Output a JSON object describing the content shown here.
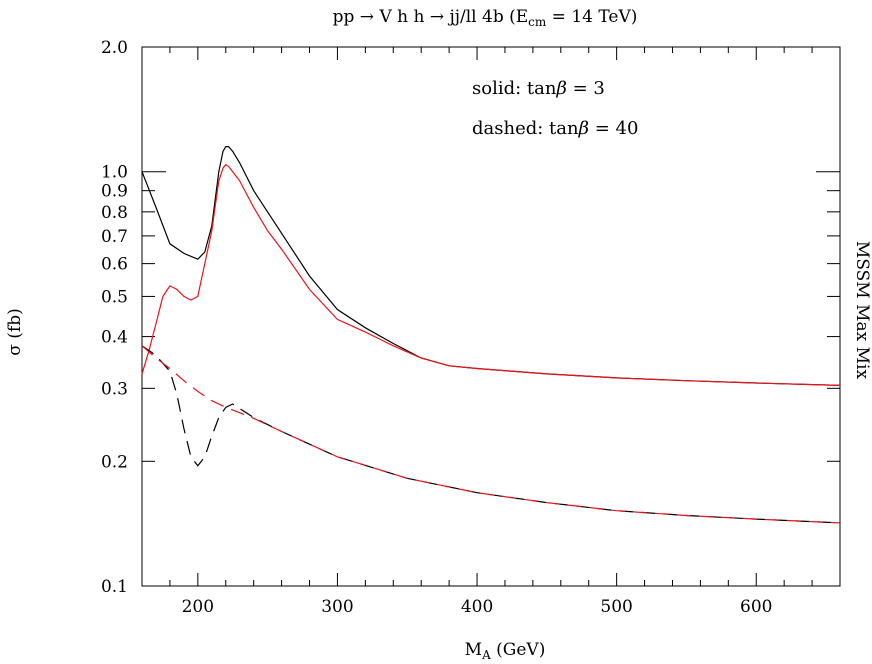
{
  "chart_data": {
    "type": "line",
    "title": "pp → V h h → jj/ll 4b (E",
    "title_sub": "cm",
    "title_tail": " = 14 TeV)",
    "xlabel": "M",
    "xlabel_sub": "A",
    "xlabel_tail": " (GeV)",
    "ylabel": "σ (fb)",
    "side_label": "MSSM Max Mix",
    "annotations": {
      "solid_prefix": "solid: tan",
      "solid_symbol": "β",
      "solid_value": " = 3",
      "dashed_prefix": "dashed: tan",
      "dashed_symbol": "β",
      "dashed_value": " = 40"
    },
    "xlim": [
      160,
      660
    ],
    "ylim": [
      0.1,
      2.0
    ],
    "yscale": "log",
    "x_ticks": [
      200,
      300,
      400,
      500,
      600
    ],
    "x_tick_labels": [
      "200",
      "300",
      "400",
      "500",
      "600"
    ],
    "y_ticks": [
      0.1,
      0.2,
      0.3,
      0.4,
      0.5,
      0.6,
      0.7,
      0.8,
      0.9,
      1.0,
      2.0
    ],
    "y_tick_labels": [
      "0.1",
      "0.2",
      "0.3",
      "0.4",
      "0.5",
      "0.6",
      "0.7",
      "0.8",
      "0.9",
      "1.0",
      "2.0"
    ],
    "colors": {
      "black": "#000000",
      "red": "#e8141c"
    },
    "series": [
      {
        "style": "solid",
        "color": "black",
        "x": [
          160,
          170,
          180,
          190,
          200,
          205,
          210,
          215,
          218,
          220,
          222,
          225,
          230,
          240,
          250,
          260,
          280,
          300,
          320,
          340,
          360,
          380,
          400,
          450,
          500,
          550,
          600,
          660
        ],
        "y": [
          1.0,
          0.82,
          0.67,
          0.635,
          0.615,
          0.64,
          0.74,
          1.0,
          1.12,
          1.15,
          1.15,
          1.12,
          1.05,
          0.9,
          0.8,
          0.71,
          0.56,
          0.465,
          0.42,
          0.385,
          0.355,
          0.34,
          0.335,
          0.325,
          0.318,
          0.313,
          0.309,
          0.305
        ]
      },
      {
        "style": "solid",
        "color": "red",
        "x": [
          160,
          165,
          170,
          175,
          180,
          185,
          190,
          195,
          200,
          205,
          210,
          215,
          218,
          220,
          222,
          225,
          230,
          240,
          250,
          260,
          280,
          300,
          320,
          340,
          360,
          380,
          400,
          450,
          500,
          550,
          600,
          660
        ],
        "y": [
          0.325,
          0.37,
          0.43,
          0.5,
          0.53,
          0.52,
          0.5,
          0.49,
          0.5,
          0.6,
          0.72,
          0.95,
          1.02,
          1.04,
          1.03,
          1.0,
          0.95,
          0.82,
          0.72,
          0.65,
          0.52,
          0.44,
          0.41,
          0.38,
          0.355,
          0.34,
          0.335,
          0.325,
          0.318,
          0.313,
          0.309,
          0.305
        ]
      },
      {
        "style": "dashed",
        "color": "black",
        "x": [
          160,
          170,
          180,
          185,
          190,
          195,
          200,
          205,
          210,
          215,
          220,
          225,
          240,
          260,
          300,
          350,
          400,
          450,
          500,
          550,
          600,
          660
        ],
        "y": [
          0.38,
          0.36,
          0.33,
          0.29,
          0.24,
          0.205,
          0.195,
          0.205,
          0.23,
          0.255,
          0.27,
          0.275,
          0.255,
          0.236,
          0.205,
          0.182,
          0.168,
          0.159,
          0.152,
          0.148,
          0.145,
          0.142
        ]
      },
      {
        "style": "dashed",
        "color": "red",
        "x": [
          160,
          170,
          180,
          190,
          200,
          210,
          220,
          230,
          240,
          260,
          300,
          350,
          400,
          450,
          500,
          550,
          600,
          660
        ],
        "y": [
          0.38,
          0.355,
          0.335,
          0.313,
          0.295,
          0.28,
          0.27,
          0.262,
          0.254,
          0.236,
          0.205,
          0.182,
          0.168,
          0.159,
          0.152,
          0.148,
          0.145,
          0.142
        ]
      }
    ]
  }
}
